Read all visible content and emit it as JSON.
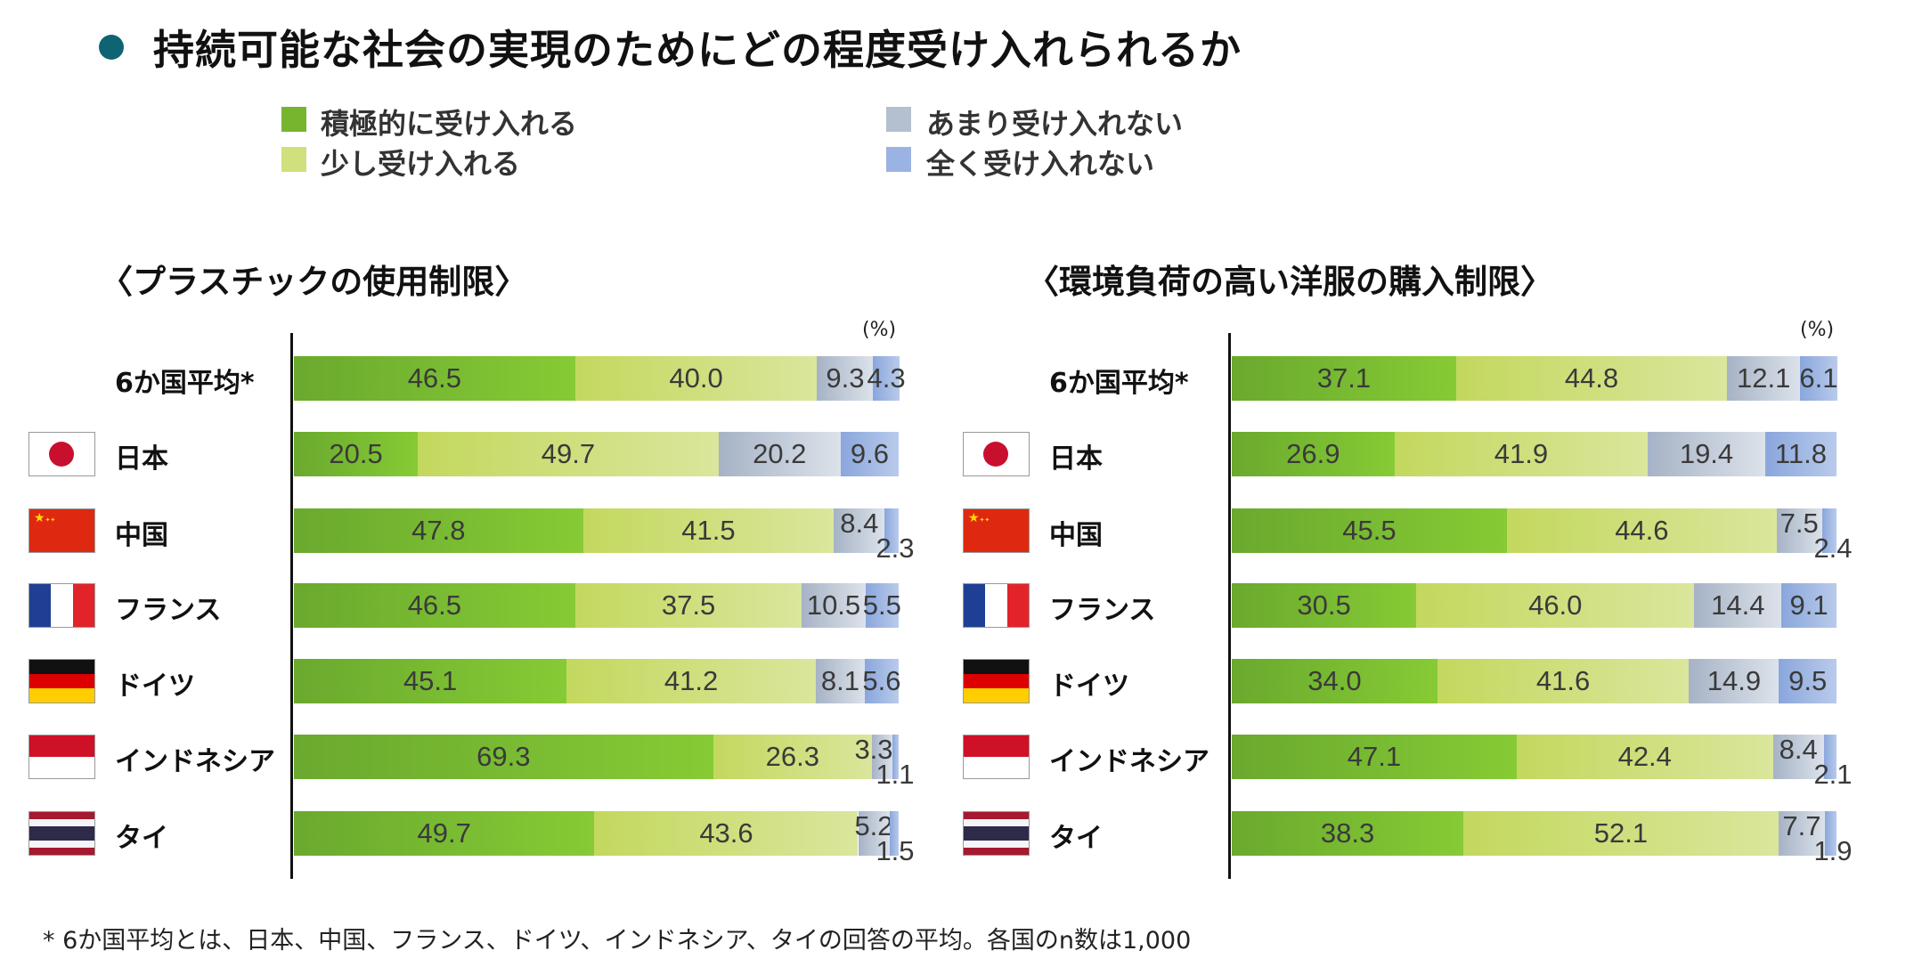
{
  "title": "持続可能な社会の実現のためにどの程度受け入れられるか",
  "legend": [
    {
      "label": "積極的に受け入れる",
      "color": "#78b52f"
    },
    {
      "label": "少し受け入れる",
      "color": "#cfe07c"
    },
    {
      "label": "あまり受け入れない",
      "color": "#b4bfcf"
    },
    {
      "label": "全く受け入れない",
      "color": "#9ab3e2"
    }
  ],
  "unit": "(%)",
  "rows": [
    {
      "label": "6か国平均*",
      "flag": "none"
    },
    {
      "label": "日本",
      "flag": "japan"
    },
    {
      "label": "中国",
      "flag": "china"
    },
    {
      "label": "フランス",
      "flag": "france"
    },
    {
      "label": "ドイツ",
      "flag": "germany"
    },
    {
      "label": "インドネシア",
      "flag": "indonesia"
    },
    {
      "label": "タイ",
      "flag": "thailand"
    }
  ],
  "chart_data": [
    {
      "type": "bar",
      "stacked": true,
      "orientation": "horizontal",
      "title": "〈プラスチックの使用制限〉",
      "categories": [
        "6か国平均*",
        "日本",
        "中国",
        "フランス",
        "ドイツ",
        "インドネシア",
        "タイ"
      ],
      "series": [
        {
          "name": "積極的に受け入れる",
          "values": [
            46.5,
            20.5,
            47.8,
            46.5,
            45.1,
            69.3,
            49.7
          ]
        },
        {
          "name": "少し受け入れる",
          "values": [
            40.0,
            49.7,
            41.5,
            37.5,
            41.2,
            26.3,
            43.6
          ]
        },
        {
          "name": "あまり受け入れない",
          "values": [
            9.3,
            20.2,
            8.4,
            10.5,
            8.1,
            3.3,
            5.2
          ]
        },
        {
          "name": "全く受け入れない",
          "values": [
            4.3,
            9.6,
            2.3,
            5.5,
            5.6,
            1.1,
            1.5
          ]
        }
      ],
      "xlim": [
        0,
        100
      ],
      "unit": "(%)"
    },
    {
      "type": "bar",
      "stacked": true,
      "orientation": "horizontal",
      "title": "〈環境負荷の高い洋服の購入制限〉",
      "categories": [
        "6か国平均*",
        "日本",
        "中国",
        "フランス",
        "ドイツ",
        "インドネシア",
        "タイ"
      ],
      "series": [
        {
          "name": "積極的に受け入れる",
          "values": [
            37.1,
            26.9,
            45.5,
            30.5,
            34.0,
            47.1,
            38.3
          ]
        },
        {
          "name": "少し受け入れる",
          "values": [
            44.8,
            41.9,
            44.6,
            46.0,
            41.6,
            42.4,
            52.1
          ]
        },
        {
          "name": "あまり受け入れない",
          "values": [
            12.1,
            19.4,
            7.5,
            14.4,
            14.9,
            8.4,
            7.7
          ]
        },
        {
          "name": "全く受け入れない",
          "values": [
            6.1,
            11.8,
            2.4,
            9.1,
            9.5,
            2.1,
            1.9
          ]
        }
      ],
      "xlim": [
        0,
        100
      ],
      "unit": "(%)"
    }
  ],
  "footnote": "* 6か国平均とは、日本、中国、フランス、ドイツ、インドネシア、タイの回答の平均。各国のn数は1,000"
}
